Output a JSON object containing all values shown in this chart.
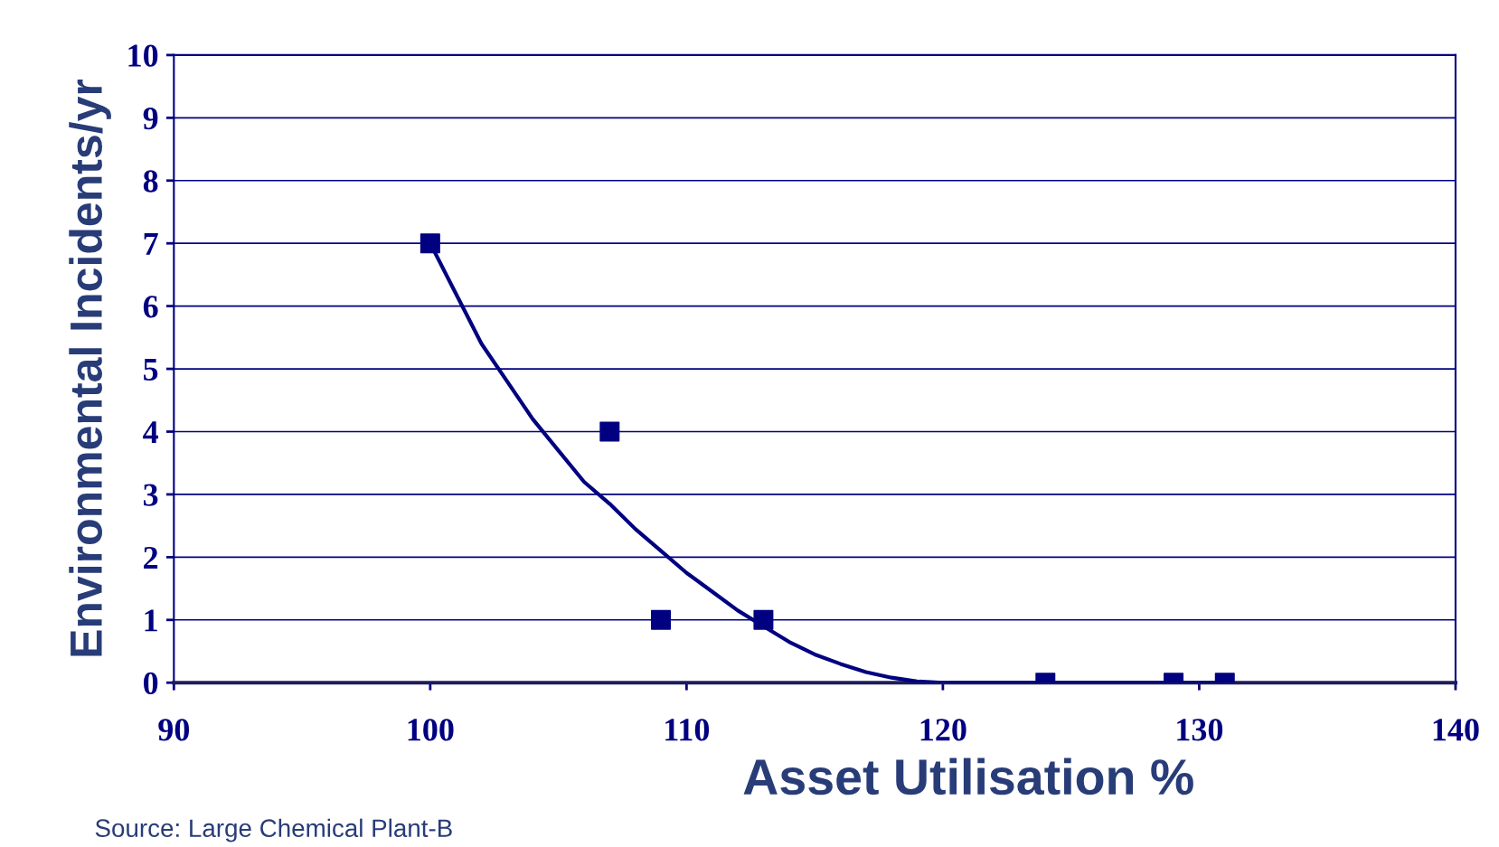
{
  "chart_data": {
    "type": "scatter",
    "xlabel": "Asset Utilisation %",
    "ylabel": "Environmental Incidents/yr",
    "annotations": [
      "Source: Large Chemical Plant-B"
    ],
    "xlim": [
      90,
      140
    ],
    "xticks": [
      90,
      100,
      110,
      120,
      130,
      140
    ],
    "ylim": [
      0,
      10
    ],
    "yticks": [
      0,
      1,
      2,
      3,
      4,
      5,
      6,
      7,
      8,
      9,
      10
    ],
    "grid": "y",
    "series": [
      {
        "color": "#000080",
        "marker": "square",
        "x": [
          100,
          107,
          109,
          113,
          124,
          129,
          131
        ],
        "values": [
          7,
          4,
          1,
          1,
          0,
          0,
          0
        ]
      },
      {
        "type": "line",
        "color": "#000080",
        "marker": "none",
        "x": [
          100,
          101,
          102,
          103,
          104,
          105,
          106,
          107,
          108,
          109,
          110,
          111,
          112,
          113,
          114,
          115,
          116,
          117,
          118,
          119,
          120,
          125,
          131
        ],
        "values": [
          7,
          6.2,
          5.4,
          4.8,
          4.2,
          3.7,
          3.2,
          2.85,
          2.45,
          2.1,
          1.75,
          1.45,
          1.15,
          0.9,
          0.65,
          0.45,
          0.3,
          0.17,
          0.08,
          0.02,
          0,
          0,
          0
        ]
      }
    ]
  }
}
